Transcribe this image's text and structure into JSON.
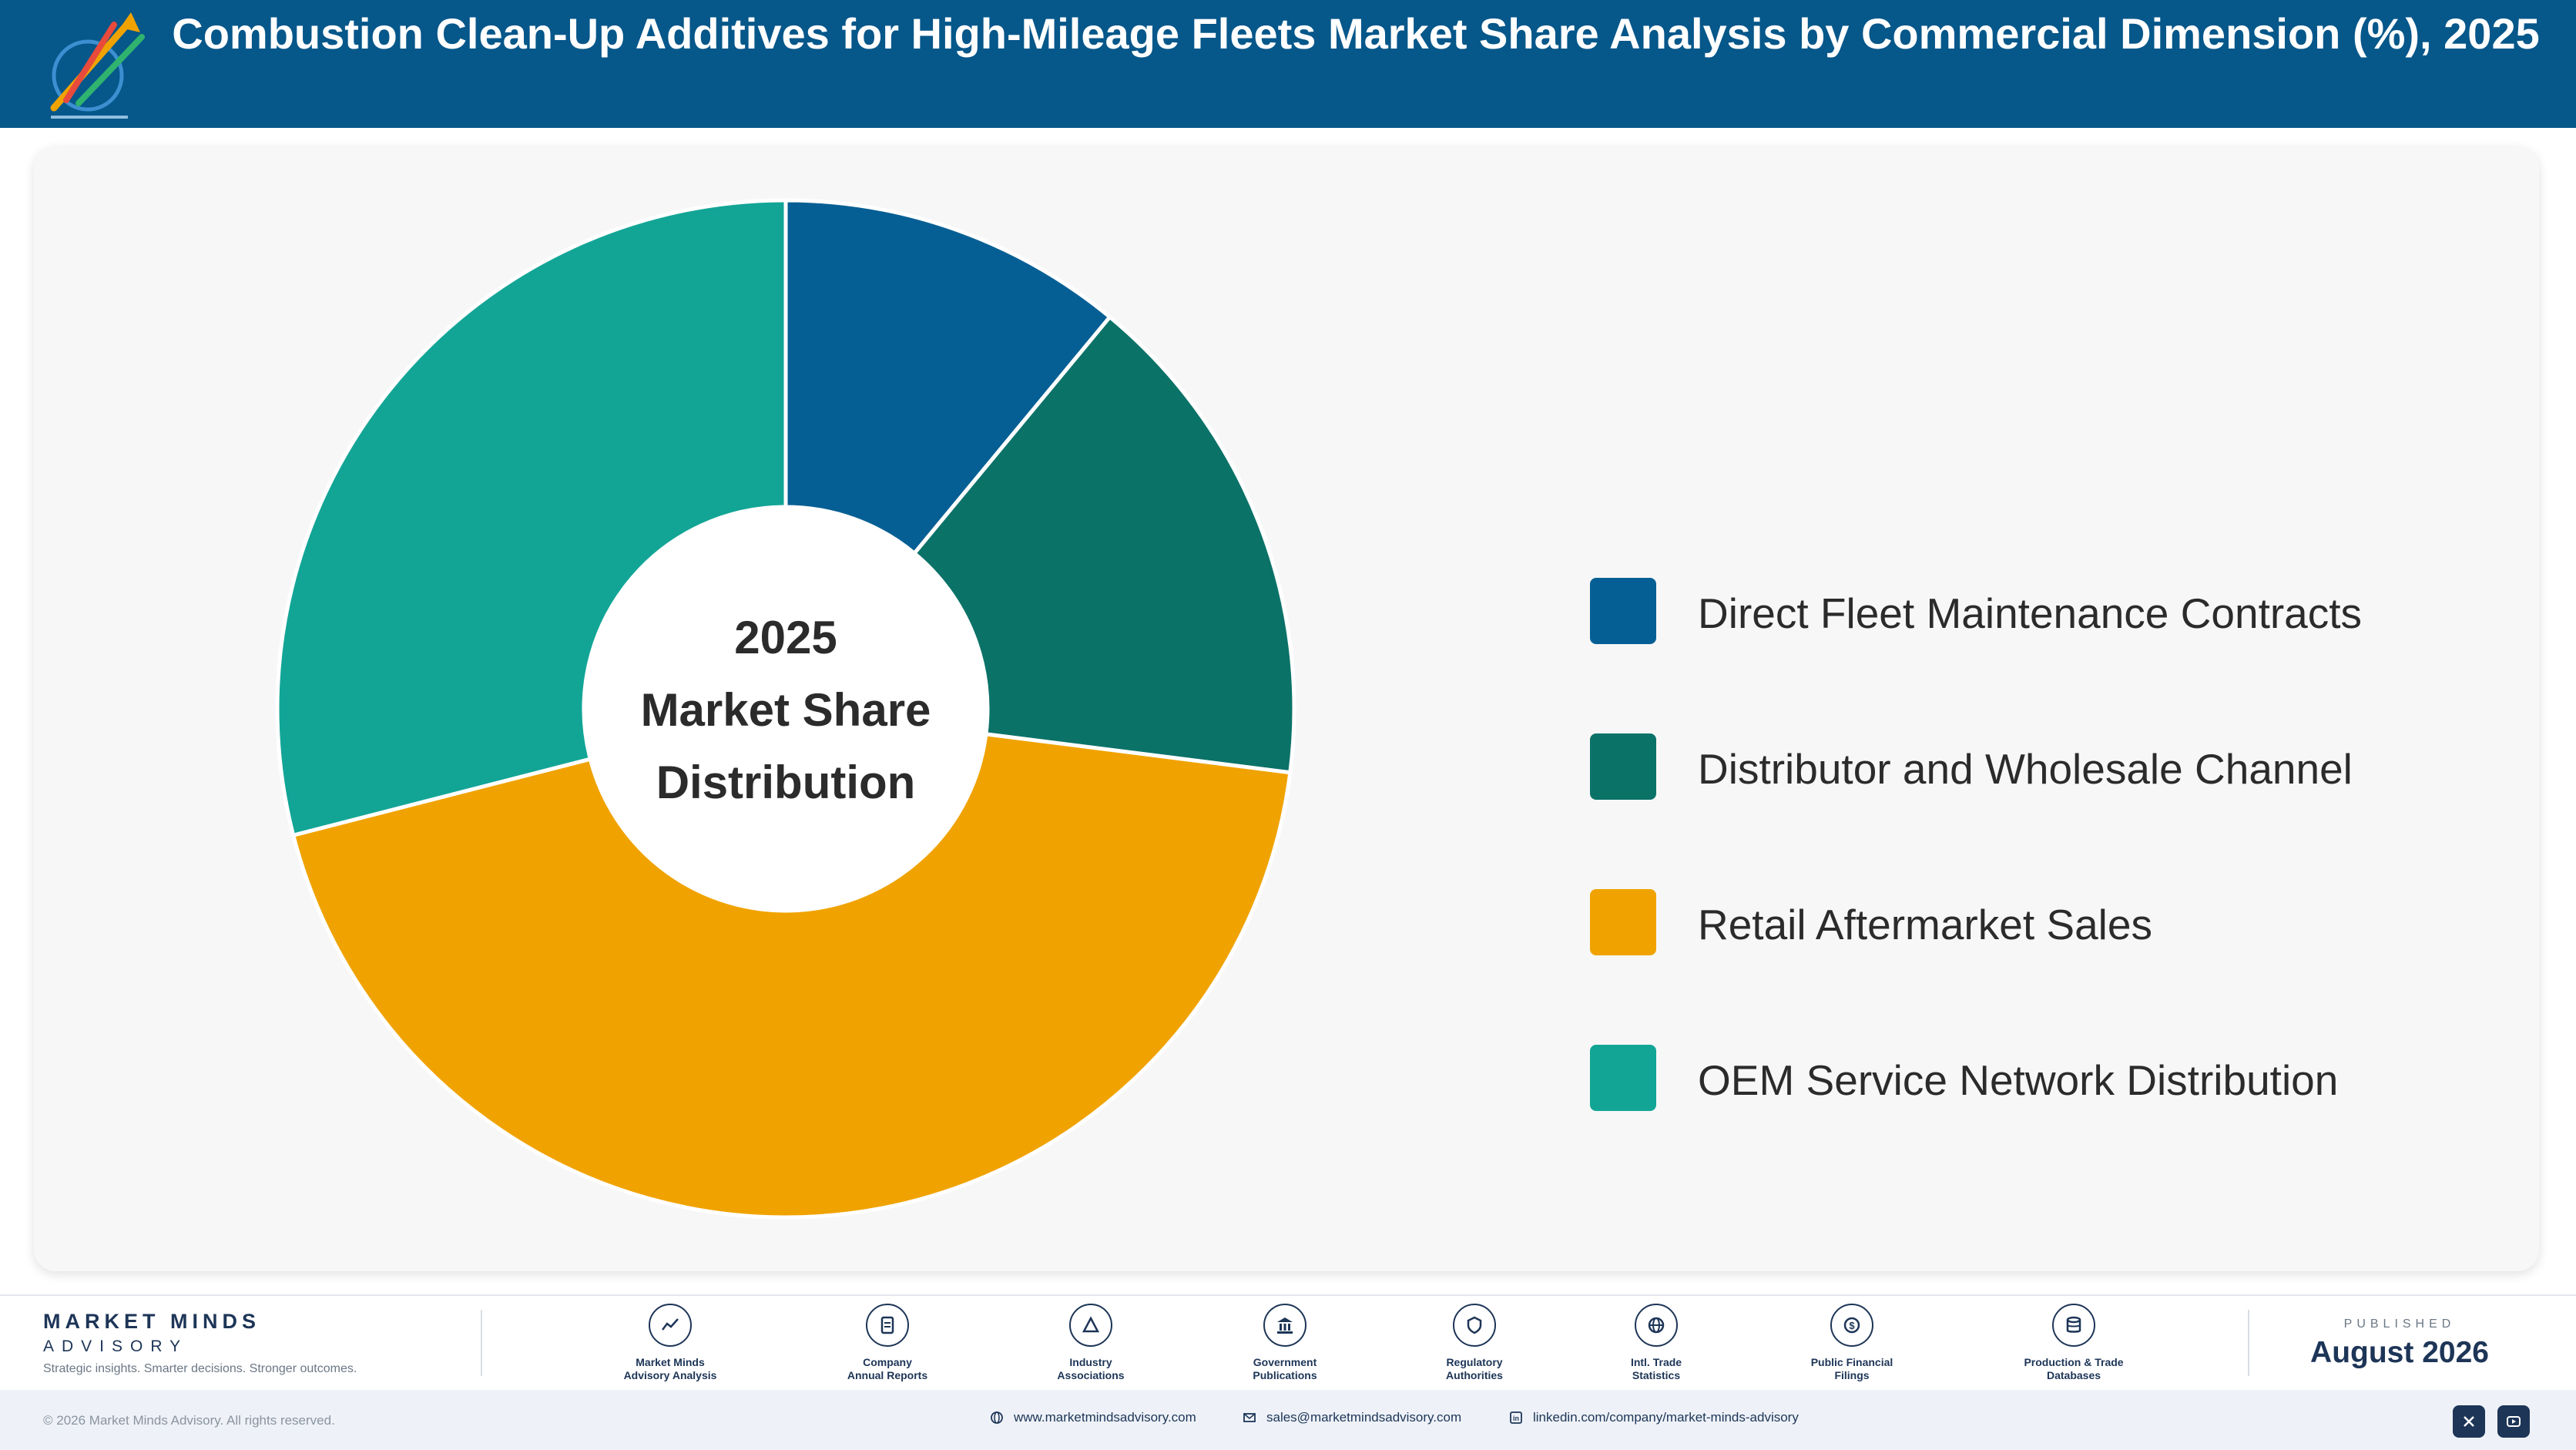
{
  "header": {
    "title": "Combustion Clean-Up Additives for High-Mileage Fleets Market Share Analysis by Commercial Dimension (%), 2025"
  },
  "chart_data": {
    "type": "pie",
    "categories": [
      "Direct Fleet Maintenance Contracts",
      "Distributor and Wholesale Channel",
      "Retail Aftermarket Sales",
      "OEM Service Network Distribution"
    ],
    "values": [
      11,
      16,
      44,
      29
    ],
    "center_label": [
      "2025",
      "Market Share",
      "Distribution"
    ],
    "colors": [
      "#065f94",
      "#0b7268",
      "#f0a300",
      "#12a596"
    ],
    "legend": "right"
  },
  "footer": {
    "brand_name": "MARKET MINDS",
    "brand_sub": "ADVISORY",
    "brand_tagline": "Strategic insights. Smarter decisions. Stronger outcomes.",
    "sources": [
      {
        "label": "Market Minds\nAdvisory Analysis",
        "icon": "chart-line-icon"
      },
      {
        "label": "Company\nAnnual Reports",
        "icon": "document-icon"
      },
      {
        "label": "Industry\nAssociations",
        "icon": "network-icon"
      },
      {
        "label": "Government\nPublications",
        "icon": "bank-icon"
      },
      {
        "label": "Regulatory\nAuthorities",
        "icon": "shield-icon"
      },
      {
        "label": "Intl. Trade\nStatistics",
        "icon": "globe-icon"
      },
      {
        "label": "Public Financial\nFilings",
        "icon": "dollar-icon"
      },
      {
        "label": "Production & Trade\nDatabases",
        "icon": "database-icon"
      }
    ],
    "published_label": "PUBLISHED",
    "published_date": "August 2026"
  },
  "bottom_bar": {
    "copyright": "© 2026 Market Minds Advisory. All rights reserved.",
    "website": "www.marketmindsadvisory.com",
    "email": "sales@marketmindsadvisory.com",
    "linkedin": "linkedin.com/company/market-minds-advisory"
  }
}
